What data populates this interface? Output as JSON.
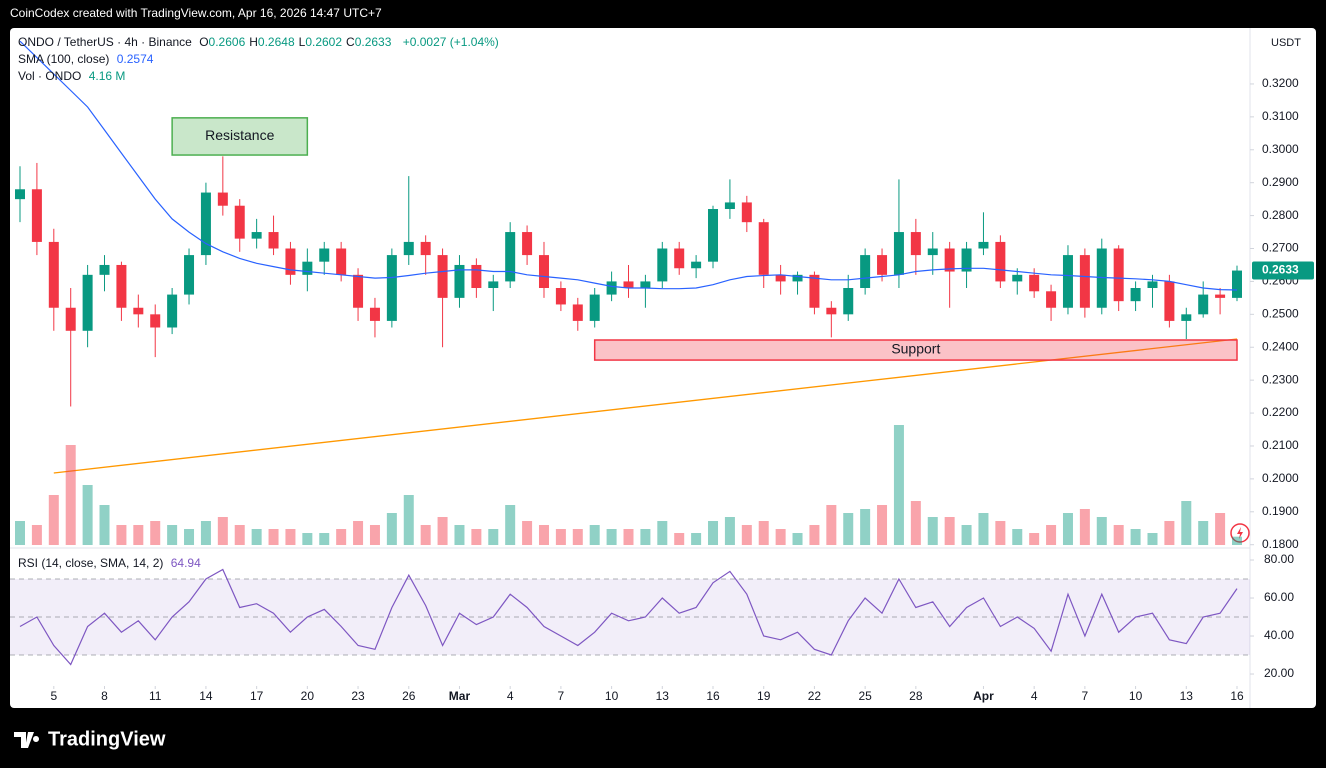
{
  "header": "CoinCodex created with TradingView.com, Apr 16, 2026 14:47 UTC+7",
  "footer": "TradingView",
  "chart_data": {
    "type": "candlestick",
    "legend": {
      "symbol": "ONDO / TetherUS · 4h · Binance",
      "ohlc": [
        {
          "key": "O",
          "value": "0.2606"
        },
        {
          "key": "H",
          "value": "0.2648"
        },
        {
          "key": "L",
          "value": "0.2602"
        },
        {
          "key": "C",
          "value": "0.2633"
        }
      ],
      "change": "+0.0027 (+1.04%)",
      "sma": "SMA (100, close)",
      "vol": "Vol · ONDO",
      "rsi": "RSI (14, close, SMA, 14, 2)"
    },
    "currency": "USDT",
    "x": [
      "Feb 3",
      "Feb 4",
      "Feb 5",
      "Feb 6",
      "Feb 7",
      "Feb 8",
      "Feb 9",
      "Feb 10",
      "Feb 11",
      "Feb 12",
      "Feb 13",
      "Feb 14",
      "Feb 15",
      "Feb 16",
      "Feb 17",
      "Feb 18",
      "Feb 19",
      "Feb 20",
      "Feb 21",
      "Feb 22",
      "Feb 23",
      "Feb 24",
      "Feb 25",
      "Feb 26",
      "Feb 27",
      "Feb 28",
      "Mar 1",
      "Mar 2",
      "Mar 3",
      "Mar 4",
      "Mar 5",
      "Mar 6",
      "Mar 7",
      "Mar 8",
      "Mar 9",
      "Mar 10",
      "Mar 11",
      "Mar 12",
      "Mar 13",
      "Mar 14",
      "Mar 15",
      "Mar 16",
      "Mar 17",
      "Mar 18",
      "Mar 19",
      "Mar 20",
      "Mar 21",
      "Mar 22",
      "Mar 23",
      "Mar 24",
      "Mar 25",
      "Mar 26",
      "Mar 27",
      "Mar 28",
      "Mar 29",
      "Mar 30",
      "Mar 31",
      "Apr 1",
      "Apr 2",
      "Apr 3",
      "Apr 4",
      "Apr 5",
      "Apr 6",
      "Apr 7",
      "Apr 8",
      "Apr 9",
      "Apr 10",
      "Apr 11",
      "Apr 12",
      "Apr 13",
      "Apr 14",
      "Apr 15",
      "Apr 16"
    ],
    "ohlc": [
      [
        0.285,
        0.295,
        0.278,
        0.288
      ],
      [
        0.288,
        0.296,
        0.268,
        0.272
      ],
      [
        0.272,
        0.276,
        0.245,
        0.252
      ],
      [
        0.252,
        0.258,
        0.222,
        0.245
      ],
      [
        0.245,
        0.265,
        0.24,
        0.262
      ],
      [
        0.262,
        0.268,
        0.257,
        0.265
      ],
      [
        0.265,
        0.266,
        0.248,
        0.252
      ],
      [
        0.252,
        0.256,
        0.246,
        0.25
      ],
      [
        0.25,
        0.253,
        0.237,
        0.246
      ],
      [
        0.246,
        0.258,
        0.244,
        0.256
      ],
      [
        0.256,
        0.27,
        0.253,
        0.268
      ],
      [
        0.268,
        0.29,
        0.265,
        0.287
      ],
      [
        0.287,
        0.298,
        0.28,
        0.283
      ],
      [
        0.283,
        0.285,
        0.269,
        0.273
      ],
      [
        0.273,
        0.279,
        0.27,
        0.275
      ],
      [
        0.275,
        0.28,
        0.268,
        0.27
      ],
      [
        0.27,
        0.272,
        0.259,
        0.262
      ],
      [
        0.262,
        0.27,
        0.257,
        0.266
      ],
      [
        0.266,
        0.272,
        0.262,
        0.27
      ],
      [
        0.27,
        0.272,
        0.26,
        0.262
      ],
      [
        0.262,
        0.264,
        0.248,
        0.252
      ],
      [
        0.252,
        0.255,
        0.243,
        0.248
      ],
      [
        0.248,
        0.27,
        0.246,
        0.268
      ],
      [
        0.268,
        0.292,
        0.265,
        0.272
      ],
      [
        0.272,
        0.274,
        0.262,
        0.268
      ],
      [
        0.268,
        0.27,
        0.24,
        0.255
      ],
      [
        0.255,
        0.268,
        0.252,
        0.265
      ],
      [
        0.265,
        0.267,
        0.255,
        0.258
      ],
      [
        0.258,
        0.262,
        0.251,
        0.26
      ],
      [
        0.26,
        0.278,
        0.258,
        0.275
      ],
      [
        0.275,
        0.277,
        0.265,
        0.268
      ],
      [
        0.268,
        0.272,
        0.255,
        0.258
      ],
      [
        0.258,
        0.26,
        0.251,
        0.253
      ],
      [
        0.253,
        0.255,
        0.245,
        0.248
      ],
      [
        0.248,
        0.258,
        0.246,
        0.256
      ],
      [
        0.256,
        0.263,
        0.254,
        0.26
      ],
      [
        0.26,
        0.265,
        0.255,
        0.258
      ],
      [
        0.258,
        0.262,
        0.252,
        0.26
      ],
      [
        0.26,
        0.272,
        0.258,
        0.27
      ],
      [
        0.27,
        0.272,
        0.262,
        0.264
      ],
      [
        0.264,
        0.268,
        0.261,
        0.266
      ],
      [
        0.266,
        0.283,
        0.264,
        0.282
      ],
      [
        0.282,
        0.291,
        0.279,
        0.284
      ],
      [
        0.284,
        0.286,
        0.275,
        0.278
      ],
      [
        0.278,
        0.279,
        0.258,
        0.262
      ],
      [
        0.262,
        0.265,
        0.256,
        0.26
      ],
      [
        0.26,
        0.263,
        0.256,
        0.262
      ],
      [
        0.262,
        0.263,
        0.25,
        0.252
      ],
      [
        0.252,
        0.254,
        0.243,
        0.25
      ],
      [
        0.25,
        0.262,
        0.248,
        0.258
      ],
      [
        0.258,
        0.27,
        0.256,
        0.268
      ],
      [
        0.268,
        0.27,
        0.26,
        0.262
      ],
      [
        0.262,
        0.291,
        0.258,
        0.275
      ],
      [
        0.275,
        0.279,
        0.262,
        0.268
      ],
      [
        0.268,
        0.275,
        0.262,
        0.27
      ],
      [
        0.27,
        0.272,
        0.252,
        0.263
      ],
      [
        0.263,
        0.272,
        0.258,
        0.27
      ],
      [
        0.27,
        0.281,
        0.268,
        0.272
      ],
      [
        0.272,
        0.274,
        0.258,
        0.26
      ],
      [
        0.26,
        0.264,
        0.256,
        0.262
      ],
      [
        0.262,
        0.264,
        0.255,
        0.257
      ],
      [
        0.257,
        0.259,
        0.248,
        0.252
      ],
      [
        0.252,
        0.271,
        0.25,
        0.268
      ],
      [
        0.268,
        0.27,
        0.249,
        0.252
      ],
      [
        0.252,
        0.273,
        0.25,
        0.27
      ],
      [
        0.27,
        0.271,
        0.251,
        0.254
      ],
      [
        0.254,
        0.26,
        0.251,
        0.258
      ],
      [
        0.258,
        0.262,
        0.252,
        0.26
      ],
      [
        0.26,
        0.262,
        0.246,
        0.248
      ],
      [
        0.248,
        0.252,
        0.2425,
        0.25
      ],
      [
        0.25,
        0.26,
        0.249,
        0.256
      ],
      [
        0.256,
        0.258,
        0.25,
        0.255
      ],
      [
        0.255,
        0.2648,
        0.254,
        0.2633
      ]
    ],
    "volume": [
      12,
      10,
      25,
      50,
      30,
      20,
      10,
      10,
      12,
      10,
      8,
      12,
      14,
      10,
      8,
      8,
      8,
      6,
      6,
      8,
      12,
      10,
      16,
      25,
      10,
      14,
      10,
      8,
      8,
      20,
      12,
      10,
      8,
      8,
      10,
      8,
      8,
      8,
      12,
      6,
      6,
      12,
      14,
      10,
      12,
      8,
      6,
      10,
      20,
      16,
      18,
      20,
      60,
      22,
      14,
      14,
      10,
      16,
      12,
      8,
      6,
      10,
      16,
      18,
      14,
      10,
      8,
      6,
      12,
      22,
      12,
      16,
      4.16
    ],
    "volume_value_label": "4.16 M",
    "sma": [
      0.333,
      0.328,
      0.323,
      0.318,
      0.313,
      0.306,
      0.299,
      0.292,
      0.285,
      0.279,
      0.275,
      0.2715,
      0.269,
      0.267,
      0.2655,
      0.2645,
      0.2635,
      0.263,
      0.2625,
      0.262,
      0.2615,
      0.261,
      0.2612,
      0.2618,
      0.2625,
      0.263,
      0.2635,
      0.2635,
      0.263,
      0.263,
      0.262,
      0.2615,
      0.261,
      0.2605,
      0.2595,
      0.2585,
      0.258,
      0.258,
      0.2578,
      0.2578,
      0.258,
      0.259,
      0.2605,
      0.2615,
      0.2618,
      0.262,
      0.2615,
      0.261,
      0.2605,
      0.2605,
      0.261,
      0.2615,
      0.262,
      0.263,
      0.2635,
      0.2638,
      0.264,
      0.264,
      0.2635,
      0.263,
      0.2625,
      0.262,
      0.2618,
      0.2615,
      0.2612,
      0.261,
      0.2608,
      0.2605,
      0.26,
      0.259,
      0.258,
      0.2575,
      0.2574
    ],
    "rsi": [
      45,
      50,
      35,
      25,
      45,
      52,
      42,
      48,
      38,
      50,
      58,
      70,
      75,
      55,
      57,
      52,
      42,
      50,
      54,
      45,
      35,
      33,
      55,
      72,
      56,
      35,
      52,
      46,
      50,
      62,
      55,
      45,
      40,
      35,
      42,
      52,
      48,
      50,
      60,
      52,
      55,
      68,
      74,
      62,
      40,
      38,
      42,
      33,
      30,
      48,
      60,
      52,
      70,
      55,
      58,
      45,
      55,
      60,
      45,
      50,
      44,
      32,
      62,
      40,
      62,
      42,
      50,
      52,
      38,
      36,
      50,
      52,
      64.94
    ],
    "colors": {
      "up": "#089981",
      "down": "#f23645",
      "sma": "#2962ff",
      "rsi": "#7e57c2",
      "trend": "#ff9800"
    },
    "ylim": [
      0.179,
      0.337
    ],
    "yticks": [
      {
        "value": 0.18,
        "label": "0.1800"
      },
      {
        "value": 0.19,
        "label": "0.1900"
      },
      {
        "value": 0.2,
        "label": "0.2000"
      },
      {
        "value": 0.21,
        "label": "0.2100"
      },
      {
        "value": 0.22,
        "label": "0.2200"
      },
      {
        "value": 0.23,
        "label": "0.2300"
      },
      {
        "value": 0.24,
        "label": "0.2400"
      },
      {
        "value": 0.25,
        "label": "0.2500"
      },
      {
        "value": 0.26,
        "label": "0.2600"
      },
      {
        "value": 0.27,
        "label": "0.2700"
      },
      {
        "value": 0.28,
        "label": "0.2800"
      },
      {
        "value": 0.29,
        "label": "0.2900"
      },
      {
        "value": 0.3,
        "label": "0.3000"
      },
      {
        "value": 0.31,
        "label": "0.3100"
      },
      {
        "value": 0.32,
        "label": "0.3200"
      }
    ],
    "rsi_ylim": [
      13.7,
      85.8
    ],
    "rsi_yticks": [
      {
        "value": 20,
        "label": "20.00"
      },
      {
        "value": 40,
        "label": "40.00"
      },
      {
        "value": 60,
        "label": "60.00"
      },
      {
        "value": 80,
        "label": "80.00"
      }
    ],
    "rsi_bands": [
      30,
      50,
      70
    ],
    "xticks": [
      {
        "value": "Feb 5",
        "label": "5"
      },
      {
        "value": "Feb 8",
        "label": "8"
      },
      {
        "value": "Feb 11",
        "label": "11"
      },
      {
        "value": "Feb 14",
        "label": "14"
      },
      {
        "value": "Feb 17",
        "label": "17"
      },
      {
        "value": "Feb 20",
        "label": "20"
      },
      {
        "value": "Feb 23",
        "label": "23"
      },
      {
        "value": "Feb 26",
        "label": "26"
      },
      {
        "value": "Mar 1",
        "label": "Mar"
      },
      {
        "value": "Mar 4",
        "label": "4"
      },
      {
        "value": "Mar 7",
        "label": "7"
      },
      {
        "value": "Mar 10",
        "label": "10"
      },
      {
        "value": "Mar 13",
        "label": "13"
      },
      {
        "value": "Mar 16",
        "label": "16"
      },
      {
        "value": "Mar 19",
        "label": "19"
      },
      {
        "value": "Mar 22",
        "label": "22"
      },
      {
        "value": "Mar 25",
        "label": "25"
      },
      {
        "value": "Mar 28",
        "label": "28"
      },
      {
        "value": "Apr 1",
        "label": "Apr"
      },
      {
        "value": "Apr 4",
        "label": "4"
      },
      {
        "value": "Apr 7",
        "label": "7"
      },
      {
        "value": "Apr 10",
        "label": "10"
      },
      {
        "value": "Apr 13",
        "label": "13"
      },
      {
        "value": "Apr 16",
        "label": "16"
      }
    ],
    "annotations": {
      "resistance": {
        "label": "Resistance",
        "x": [
          "Feb 12",
          "Feb 20"
        ],
        "y": [
          0.2984,
          0.3097
        ]
      },
      "support": {
        "label": "Support",
        "x": [
          "Mar 9",
          "Apr 16"
        ],
        "y": [
          0.2361,
          0.2422
        ]
      },
      "trendline": {
        "x": [
          "Feb 5",
          "Apr 16"
        ],
        "y": [
          0.2018,
          0.2425
        ]
      }
    },
    "grid": false
  }
}
